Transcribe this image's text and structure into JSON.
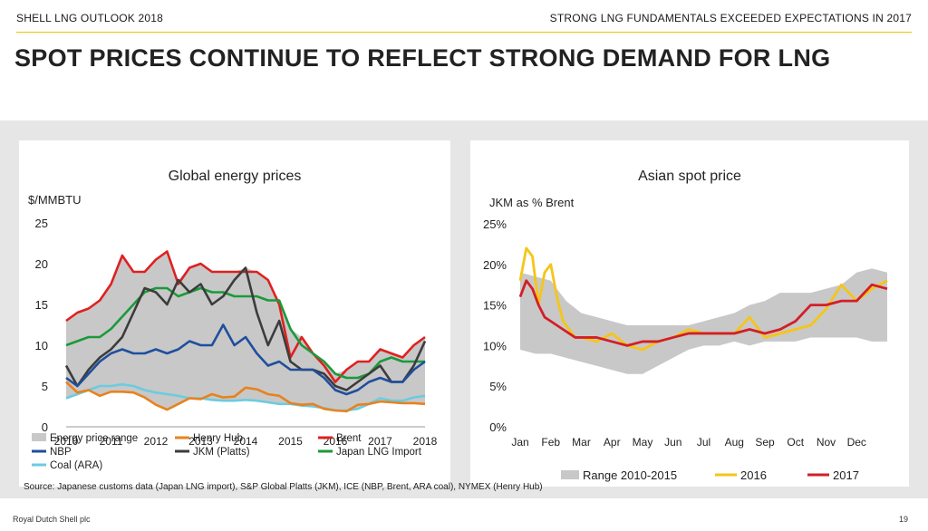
{
  "header": {
    "left": "SHELL LNG OUTLOOK 2018",
    "right": "STRONG LNG FUNDAMENTALS EXCEEDED EXPECTATIONS IN 2017"
  },
  "title": "SPOT PRICES CONTINUE TO REFLECT STRONG DEMAND FOR LNG",
  "source": "Source: Japanese customs data (Japan LNG import), S&P Global Platts (JKM), ICE (NBP, Brent, ARA coal), NYMEX (Henry Hub)",
  "footer": {
    "company": "Royal Dutch Shell plc",
    "page": "19"
  },
  "colors": {
    "accent": "#f2c500",
    "range": "#c8c8c8",
    "henry": "#e8821e",
    "brent": "#e02020",
    "nbp": "#1f4e9e",
    "jkm": "#3c3c3c",
    "japan": "#1a9a3a",
    "coal": "#6ccbe0",
    "y2016": "#f5c518",
    "y2017": "#d21f26"
  },
  "chart_data": [
    {
      "type": "line",
      "title": "Global energy prices",
      "ylabel": "$/MMBTU",
      "ylim": [
        0,
        25
      ],
      "yticks": [
        "0",
        "5",
        "10",
        "15",
        "20",
        "25"
      ],
      "xlim": [
        2010,
        2018
      ],
      "xticks": [
        "2010",
        "2011",
        "2012",
        "2013",
        "2014",
        "2015",
        "2016",
        "2017",
        "2018"
      ],
      "legend": [
        "Energy price range",
        "Henry Hub",
        "Brent",
        "NBP",
        "JKM (Platts)",
        "Japan LNG Import",
        "Coal (ARA)"
      ],
      "series": [
        {
          "name": "Brent",
          "color": "#e02020",
          "x": [
            2010,
            2010.25,
            2010.5,
            2010.75,
            2011,
            2011.25,
            2011.5,
            2011.75,
            2012,
            2012.25,
            2012.5,
            2012.75,
            2013,
            2013.25,
            2013.5,
            2013.75,
            2014,
            2014.25,
            2014.5,
            2014.75,
            2015,
            2015.25,
            2015.5,
            2015.75,
            2016,
            2016.25,
            2016.5,
            2016.75,
            2017,
            2017.25,
            2017.5,
            2017.75,
            2018
          ],
          "values": [
            13,
            14,
            14.5,
            15.5,
            17.5,
            21,
            19,
            19,
            20.5,
            21.5,
            17.5,
            19.5,
            20,
            19,
            19,
            19,
            19,
            19,
            18,
            15,
            8.5,
            11,
            9,
            7.5,
            5.5,
            7,
            8,
            8,
            9.5,
            9,
            8.5,
            10,
            11
          ]
        },
        {
          "name": "Japan LNG Import",
          "color": "#1a9a3a",
          "x": [
            2010,
            2010.25,
            2010.5,
            2010.75,
            2011,
            2011.25,
            2011.5,
            2011.75,
            2012,
            2012.25,
            2012.5,
            2012.75,
            2013,
            2013.25,
            2013.5,
            2013.75,
            2014,
            2014.25,
            2014.5,
            2014.75,
            2015,
            2015.25,
            2015.5,
            2015.75,
            2016,
            2016.25,
            2016.5,
            2016.75,
            2017,
            2017.25,
            2017.5,
            2017.75,
            2018
          ],
          "values": [
            10,
            10.5,
            11,
            11,
            12,
            13.5,
            15,
            16.5,
            17,
            17,
            16,
            16.5,
            17,
            16.5,
            16.5,
            16,
            16,
            16,
            15.5,
            15.5,
            12,
            10,
            9,
            8,
            6.5,
            6,
            6,
            6.5,
            8,
            8.5,
            8,
            8,
            8
          ]
        },
        {
          "name": "JKM (Platts)",
          "color": "#3c3c3c",
          "x": [
            2010,
            2010.25,
            2010.5,
            2010.75,
            2011,
            2011.25,
            2011.5,
            2011.75,
            2012,
            2012.25,
            2012.5,
            2012.75,
            2013,
            2013.25,
            2013.5,
            2013.75,
            2014,
            2014.25,
            2014.5,
            2014.75,
            2015,
            2015.25,
            2015.5,
            2015.75,
            2016,
            2016.25,
            2016.5,
            2016.75,
            2017,
            2017.25,
            2017.5,
            2017.75,
            2018
          ],
          "values": [
            7.5,
            5,
            7,
            8.5,
            9.5,
            11,
            14,
            17,
            16.5,
            15,
            18,
            16.5,
            17.5,
            15,
            16,
            18,
            19.5,
            14,
            10,
            13,
            8,
            7,
            7,
            6.5,
            5,
            4.5,
            5.5,
            6.5,
            7.5,
            5.5,
            5.5,
            7.5,
            10.5
          ]
        },
        {
          "name": "NBP",
          "color": "#1f4e9e",
          "x": [
            2010,
            2010.25,
            2010.5,
            2010.75,
            2011,
            2011.25,
            2011.5,
            2011.75,
            2012,
            2012.25,
            2012.5,
            2012.75,
            2013,
            2013.25,
            2013.5,
            2013.75,
            2014,
            2014.25,
            2014.5,
            2014.75,
            2015,
            2015.25,
            2015.5,
            2015.75,
            2016,
            2016.25,
            2016.5,
            2016.75,
            2017,
            2017.25,
            2017.5,
            2017.75,
            2018
          ],
          "values": [
            6,
            5,
            6.5,
            8,
            9,
            9.5,
            9,
            9,
            9.5,
            9,
            9.5,
            10.5,
            10,
            10,
            12.5,
            10,
            11,
            9,
            7.5,
            8,
            7,
            7,
            7,
            6,
            4.5,
            4,
            4.5,
            5.5,
            6,
            5.5,
            5.5,
            7,
            8
          ]
        },
        {
          "name": "Coal (ARA)",
          "color": "#6ccbe0",
          "x": [
            2010,
            2010.25,
            2010.5,
            2010.75,
            2011,
            2011.25,
            2011.5,
            2011.75,
            2012,
            2012.25,
            2012.5,
            2012.75,
            2013,
            2013.25,
            2013.5,
            2013.75,
            2014,
            2014.25,
            2014.5,
            2014.75,
            2015,
            2015.25,
            2015.5,
            2015.75,
            2016,
            2016.25,
            2016.5,
            2016.75,
            2017,
            2017.25,
            2017.5,
            2017.75,
            2018
          ],
          "values": [
            3.5,
            4,
            4.5,
            5,
            5,
            5.2,
            5,
            4.5,
            4.2,
            4,
            3.8,
            3.5,
            3.5,
            3.3,
            3.2,
            3.2,
            3.3,
            3.2,
            3,
            2.8,
            2.8,
            2.6,
            2.5,
            2.3,
            2,
            2,
            2.2,
            2.8,
            3.5,
            3.2,
            3.2,
            3.6,
            3.8
          ]
        },
        {
          "name": "Henry Hub",
          "color": "#e8821e",
          "x": [
            2010,
            2010.25,
            2010.5,
            2010.75,
            2011,
            2011.25,
            2011.5,
            2011.75,
            2012,
            2012.25,
            2012.5,
            2012.75,
            2013,
            2013.25,
            2013.5,
            2013.75,
            2014,
            2014.25,
            2014.5,
            2014.75,
            2015,
            2015.25,
            2015.5,
            2015.75,
            2016,
            2016.25,
            2016.5,
            2016.75,
            2017,
            2017.25,
            2017.5,
            2017.75,
            2018
          ],
          "values": [
            5.5,
            4.2,
            4.5,
            3.8,
            4.3,
            4.3,
            4.2,
            3.6,
            2.7,
            2.1,
            2.8,
            3.5,
            3.4,
            4,
            3.6,
            3.7,
            4.8,
            4.6,
            4,
            3.8,
            2.9,
            2.7,
            2.8,
            2.2,
            2,
            1.9,
            2.7,
            2.8,
            3.1,
            3,
            2.9,
            2.9,
            2.8
          ]
        }
      ]
    },
    {
      "type": "line",
      "title": "Asian spot price",
      "ylabel": "JKM as % Brent",
      "ylim": [
        0,
        25
      ],
      "yticks": [
        "0%",
        "5%",
        "10%",
        "15%",
        "20%",
        "25%"
      ],
      "categories": [
        "Jan",
        "Feb",
        "Mar",
        "Apr",
        "May",
        "Jun",
        "Jul",
        "Aug",
        "Sep",
        "Oct",
        "Nov",
        "Dec"
      ],
      "legend": [
        "Range 2010-2015",
        "2016",
        "2017"
      ],
      "range_band": {
        "x": [
          0,
          0.5,
          1,
          1.5,
          2,
          2.5,
          3,
          3.5,
          4,
          4.5,
          5,
          5.5,
          6,
          6.5,
          7,
          7.5,
          8,
          8.5,
          9,
          9.5,
          10,
          10.5,
          11,
          11.5,
          12
        ],
        "low": [
          9.5,
          9,
          9,
          8.5,
          8,
          7.5,
          7,
          6.5,
          6.5,
          7.5,
          8.5,
          9.5,
          10,
          10,
          10.5,
          10,
          10.5,
          10.5,
          10.5,
          11,
          11,
          11,
          11,
          10.5,
          10.5
        ],
        "high": [
          19,
          18.5,
          18,
          15.5,
          14,
          13.5,
          13,
          12.5,
          12.5,
          12.5,
          12.5,
          12.5,
          13,
          13.5,
          14,
          15,
          15.5,
          16.5,
          16.5,
          16.5,
          17,
          17.5,
          19,
          19.5,
          19
        ]
      },
      "series": [
        {
          "name": "2016",
          "color": "#f5c518",
          "x": [
            0,
            0.2,
            0.4,
            0.6,
            0.8,
            1,
            1.2,
            1.4,
            1.6,
            1.8,
            2,
            2.5,
            3,
            3.5,
            4,
            4.5,
            5,
            5.5,
            6,
            6.5,
            7,
            7.5,
            8,
            8.5,
            9,
            9.5,
            10,
            10.5,
            11,
            11.5,
            12
          ],
          "values": [
            18,
            22,
            21,
            15,
            19,
            20,
            16,
            13,
            12,
            11,
            11,
            10.5,
            11.5,
            10,
            9.5,
            10.5,
            11,
            12,
            11.5,
            11.5,
            11.5,
            13.5,
            11,
            11.5,
            12,
            12.5,
            14.5,
            17.5,
            15.5,
            17,
            18
          ]
        },
        {
          "name": "2017",
          "color": "#d21f26",
          "x": [
            0,
            0.2,
            0.4,
            0.6,
            0.8,
            1,
            1.2,
            1.4,
            1.6,
            1.8,
            2,
            2.5,
            3,
            3.5,
            4,
            4.5,
            5,
            5.5,
            6,
            6.5,
            7,
            7.5,
            8,
            8.5,
            9,
            9.5,
            10,
            10.5,
            11,
            11.5,
            12
          ],
          "values": [
            16,
            18,
            17,
            15,
            13.5,
            13,
            12.5,
            12,
            11.5,
            11,
            11,
            11,
            10.5,
            10,
            10.5,
            10.5,
            11,
            11.5,
            11.5,
            11.5,
            11.5,
            12,
            11.5,
            12,
            13,
            15,
            15,
            15.5,
            15.5,
            17.5,
            17
          ]
        }
      ]
    }
  ]
}
